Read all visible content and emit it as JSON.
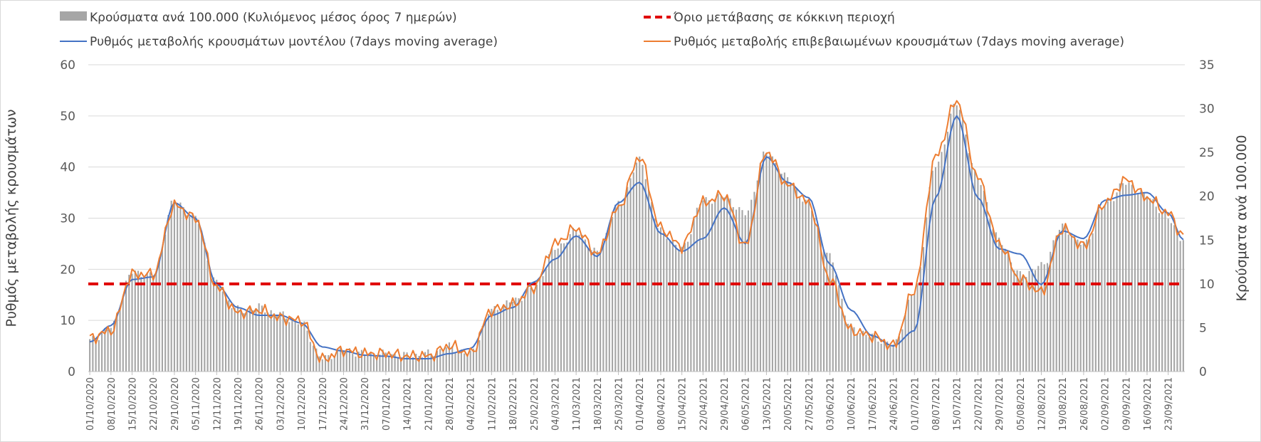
{
  "chart_data": {
    "type": "bar+line",
    "title": "",
    "ylabel_left": "Ρυθμός μεταβολής κρουσμάτων",
    "ylabel_right": "Κρούσματα ανά 100.000",
    "ylim_left": [
      0,
      60
    ],
    "ylim_right": [
      0,
      35
    ],
    "yticks_left": [
      "0",
      "10",
      "20",
      "30",
      "40",
      "50",
      "60"
    ],
    "yticks_right": [
      "0",
      "5",
      "10",
      "15",
      "20",
      "25",
      "30",
      "35"
    ],
    "grid": "horizontal",
    "legend_position": "top",
    "legend": [
      {
        "label": "Κρούσματα ανά 100.000 (Κυλιόμενος μέσος όρος 7 ημερών)",
        "kind": "bar",
        "color": "#a6a6a6"
      },
      {
        "label": "Όριο μετάβασης σε κόκκινη περιοχή",
        "kind": "dashed",
        "color": "#e00000"
      },
      {
        "label": "Ρυθμός μεταβολής κρουσμάτων μοντέλου (7days moving average)",
        "kind": "line",
        "color": "#4472c4"
      },
      {
        "label": "Ρυθμός μεταβολής επιβεβαιωμένων κρουσμάτων (7days moving average)",
        "kind": "line",
        "color": "#ed7d31"
      }
    ],
    "x_start": "01/10/2020",
    "x_end": "28/09/2021",
    "x_tick_labels": [
      "01/10/2020",
      "08/10/2020",
      "15/10/2020",
      "22/10/2020",
      "29/10/2020",
      "05/11/2020",
      "12/11/2020",
      "19/11/2020",
      "26/11/2020",
      "03/12/2020",
      "10/12/2020",
      "17/12/2020",
      "24/12/2020",
      "31/12/2020",
      "07/01/2021",
      "14/01/2021",
      "21/01/2021",
      "28/01/2021",
      "04/02/2021",
      "11/02/2021",
      "18/02/2021",
      "25/02/2021",
      "04/03/2021",
      "11/03/2021",
      "18/03/2021",
      "25/03/2021",
      "01/04/2021",
      "08/04/2021",
      "15/04/2021",
      "22/04/2021",
      "29/04/2021",
      "06/05/2021",
      "13/05/2021",
      "20/05/2021",
      "27/05/2021",
      "03/06/2021",
      "10/06/2021",
      "17/06/2021",
      "24/06/2021",
      "01/07/2021",
      "08/07/2021",
      "15/07/2021",
      "22/07/2021",
      "29/07/2021",
      "05/08/2021",
      "12/08/2021",
      "19/08/2021",
      "26/08/2021",
      "02/09/2021",
      "09/09/2021",
      "16/09/2021",
      "23/09/2021"
    ],
    "threshold_right_axis": 10,
    "series": [
      {
        "name": "Κρούσματα ανά 100.000 (Κυλιόμενος μέσος όρος 7 ημερών)",
        "axis": "right",
        "type": "bar",
        "keypoints": [
          [
            "01/10/2020",
            3.5
          ],
          [
            "08/10/2020",
            5
          ],
          [
            "15/10/2020",
            11.3
          ],
          [
            "22/10/2020",
            11
          ],
          [
            "29/10/2020",
            19.5
          ],
          [
            "05/11/2020",
            17.5
          ],
          [
            "12/11/2020",
            10
          ],
          [
            "19/11/2020",
            7
          ],
          [
            "26/11/2020",
            7.3
          ],
          [
            "03/12/2020",
            6.5
          ],
          [
            "10/12/2020",
            5.5
          ],
          [
            "17/12/2020",
            1.5
          ],
          [
            "24/12/2020",
            2.5
          ],
          [
            "31/12/2020",
            2
          ],
          [
            "07/01/2021",
            2
          ],
          [
            "14/01/2021",
            1.8
          ],
          [
            "21/01/2021",
            2
          ],
          [
            "28/01/2021",
            2.8
          ],
          [
            "04/02/2021",
            2
          ],
          [
            "11/02/2021",
            7
          ],
          [
            "18/02/2021",
            8
          ],
          [
            "25/02/2021",
            9.5
          ],
          [
            "04/03/2021",
            14
          ],
          [
            "11/03/2021",
            16
          ],
          [
            "18/03/2021",
            13.5
          ],
          [
            "25/03/2021",
            19
          ],
          [
            "01/04/2021",
            24
          ],
          [
            "08/04/2021",
            16
          ],
          [
            "15/04/2021",
            14
          ],
          [
            "22/04/2021",
            19.5
          ],
          [
            "29/04/2021",
            20
          ],
          [
            "06/05/2021",
            18
          ],
          [
            "13/05/2021",
            25
          ],
          [
            "20/05/2021",
            22
          ],
          [
            "27/05/2021",
            19
          ],
          [
            "03/06/2021",
            13
          ],
          [
            "10/06/2021",
            5
          ],
          [
            "17/06/2021",
            4
          ],
          [
            "24/06/2021",
            3
          ],
          [
            "01/07/2021",
            9
          ],
          [
            "08/07/2021",
            23.5
          ],
          [
            "15/07/2021",
            30.5
          ],
          [
            "22/07/2021",
            22
          ],
          [
            "29/07/2021",
            15
          ],
          [
            "05/08/2021",
            11
          ],
          [
            "12/08/2021",
            12
          ],
          [
            "19/08/2021",
            16.5
          ],
          [
            "26/08/2021",
            14.5
          ],
          [
            "02/09/2021",
            19
          ],
          [
            "09/09/2021",
            21.5
          ],
          [
            "16/09/2021",
            20
          ],
          [
            "23/09/2021",
            17.5
          ],
          [
            "28/09/2021",
            15
          ]
        ]
      },
      {
        "name": "Ρυθμός μεταβολής κρουσμάτων μοντέλου (7days moving average)",
        "axis": "left",
        "type": "line",
        "keypoints": [
          [
            "01/10/2020",
            5.8
          ],
          [
            "08/10/2020",
            9
          ],
          [
            "15/10/2020",
            18
          ],
          [
            "22/10/2020",
            18.5
          ],
          [
            "29/10/2020",
            33
          ],
          [
            "05/11/2020",
            30
          ],
          [
            "12/11/2020",
            17
          ],
          [
            "19/11/2020",
            12.5
          ],
          [
            "26/11/2020",
            11
          ],
          [
            "03/12/2020",
            11
          ],
          [
            "10/12/2020",
            9.5
          ],
          [
            "17/12/2020",
            4.8
          ],
          [
            "24/12/2020",
            4
          ],
          [
            "31/12/2020",
            3.2
          ],
          [
            "07/01/2021",
            3
          ],
          [
            "14/01/2021",
            2.5
          ],
          [
            "21/01/2021",
            2.5
          ],
          [
            "28/01/2021",
            3.5
          ],
          [
            "04/02/2021",
            4.5
          ],
          [
            "11/02/2021",
            11
          ],
          [
            "18/02/2021",
            12.5
          ],
          [
            "25/02/2021",
            17.5
          ],
          [
            "04/03/2021",
            22
          ],
          [
            "11/03/2021",
            26.5
          ],
          [
            "18/03/2021",
            22.5
          ],
          [
            "25/03/2021",
            33
          ],
          [
            "01/04/2021",
            37
          ],
          [
            "08/04/2021",
            27
          ],
          [
            "15/04/2021",
            23.5
          ],
          [
            "22/04/2021",
            26
          ],
          [
            "29/04/2021",
            32
          ],
          [
            "06/05/2021",
            25
          ],
          [
            "13/05/2021",
            42
          ],
          [
            "20/05/2021",
            37
          ],
          [
            "27/05/2021",
            34
          ],
          [
            "03/06/2021",
            21
          ],
          [
            "10/06/2021",
            12
          ],
          [
            "17/06/2021",
            7
          ],
          [
            "24/06/2021",
            5
          ],
          [
            "01/07/2021",
            8
          ],
          [
            "08/07/2021",
            34
          ],
          [
            "15/07/2021",
            50
          ],
          [
            "22/07/2021",
            34
          ],
          [
            "29/07/2021",
            24
          ],
          [
            "05/08/2021",
            23
          ],
          [
            "12/08/2021",
            17
          ],
          [
            "19/08/2021",
            27.5
          ],
          [
            "26/08/2021",
            26
          ],
          [
            "02/09/2021",
            33.5
          ],
          [
            "09/09/2021",
            34.5
          ],
          [
            "16/09/2021",
            35
          ],
          [
            "23/09/2021",
            31
          ],
          [
            "28/09/2021",
            25.8
          ]
        ]
      },
      {
        "name": "Ρυθμός μεταβολής επιβεβαιωμένων κρουσμάτων (7days moving average)",
        "axis": "left",
        "type": "line",
        "keypoints": [
          [
            "01/10/2020",
            6.5
          ],
          [
            "08/10/2020",
            8
          ],
          [
            "15/10/2020",
            19
          ],
          [
            "22/10/2020",
            19
          ],
          [
            "29/10/2020",
            32.5
          ],
          [
            "05/11/2020",
            30
          ],
          [
            "12/11/2020",
            16.5
          ],
          [
            "19/11/2020",
            11.5
          ],
          [
            "26/11/2020",
            12
          ],
          [
            "03/12/2020",
            10.5
          ],
          [
            "10/12/2020",
            10
          ],
          [
            "17/12/2020",
            2.3
          ],
          [
            "24/12/2020",
            4.2
          ],
          [
            "31/12/2020",
            3.5
          ],
          [
            "07/01/2021",
            3.5
          ],
          [
            "14/01/2021",
            3
          ],
          [
            "21/01/2021",
            3
          ],
          [
            "28/01/2021",
            5
          ],
          [
            "04/02/2021",
            3.5
          ],
          [
            "11/02/2021",
            12
          ],
          [
            "18/02/2021",
            13
          ],
          [
            "25/02/2021",
            16.5
          ],
          [
            "04/03/2021",
            25
          ],
          [
            "11/03/2021",
            28
          ],
          [
            "18/03/2021",
            23
          ],
          [
            "25/03/2021",
            32
          ],
          [
            "01/04/2021",
            42
          ],
          [
            "08/04/2021",
            28
          ],
          [
            "15/04/2021",
            24.5
          ],
          [
            "22/04/2021",
            33
          ],
          [
            "29/04/2021",
            34.5
          ],
          [
            "06/05/2021",
            24.5
          ],
          [
            "13/05/2021",
            43
          ],
          [
            "20/05/2021",
            36.5
          ],
          [
            "27/05/2021",
            33
          ],
          [
            "03/06/2021",
            18
          ],
          [
            "10/06/2021",
            8
          ],
          [
            "17/06/2021",
            7
          ],
          [
            "24/06/2021",
            5
          ],
          [
            "01/07/2021",
            16
          ],
          [
            "08/07/2021",
            42
          ],
          [
            "15/07/2021",
            53
          ],
          [
            "22/07/2021",
            38
          ],
          [
            "29/07/2021",
            25
          ],
          [
            "05/08/2021",
            18
          ],
          [
            "12/08/2021",
            15.5
          ],
          [
            "19/08/2021",
            28
          ],
          [
            "26/08/2021",
            24.5
          ],
          [
            "02/09/2021",
            33
          ],
          [
            "09/09/2021",
            37.5
          ],
          [
            "16/09/2021",
            34
          ],
          [
            "23/09/2021",
            31
          ],
          [
            "28/09/2021",
            26.5
          ]
        ]
      }
    ]
  }
}
